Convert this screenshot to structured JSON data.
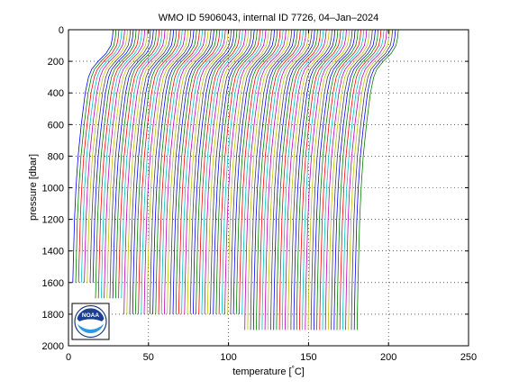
{
  "chart_data": {
    "type": "line",
    "title": "WMO ID 5906043, internal ID 7726, 04–Jan–2024",
    "xlabel": "temperature [°C]",
    "ylabel": "pressure [dbar]",
    "xlim": [
      0,
      250
    ],
    "ylim": [
      0,
      2000
    ],
    "y_reversed": true,
    "grid": "dotted",
    "xticks": [
      0,
      50,
      100,
      150,
      200,
      250
    ],
    "yticks": [
      0,
      200,
      400,
      600,
      800,
      1000,
      1200,
      1400,
      1600,
      1800,
      2000
    ],
    "series_colors": [
      "#0000ff",
      "#008000",
      "#ff0000",
      "#00bfbf",
      "#bf00bf",
      "#bfbf00",
      "#404040"
    ],
    "profiles": {
      "count": 100,
      "offset_step": 1.8,
      "first_surface_temp": 28,
      "reference_profile": {
        "pressure": [
          0,
          10,
          50,
          100,
          150,
          200,
          250,
          300,
          400,
          600,
          800,
          1000,
          1200,
          1400,
          1600,
          1800,
          1900
        ],
        "temperature": [
          28.5,
          28.3,
          28.0,
          27.0,
          24.0,
          19.0,
          15.0,
          13.0,
          11.0,
          8.5,
          6.5,
          5.2,
          4.3,
          3.7,
          3.2,
          2.8,
          2.7
        ]
      },
      "max_pressure_groups": [
        {
          "profiles_to": 8,
          "max_pressure": 1600
        },
        {
          "profiles_to": 18,
          "max_pressure": 1700
        },
        {
          "profiles_to": 30,
          "max_pressure": 1800
        },
        {
          "profiles_to": 60,
          "max_pressure": 1800
        },
        {
          "profiles_to": 100,
          "max_pressure": 1900
        }
      ]
    }
  },
  "logo": {
    "text": "NOAA"
  }
}
